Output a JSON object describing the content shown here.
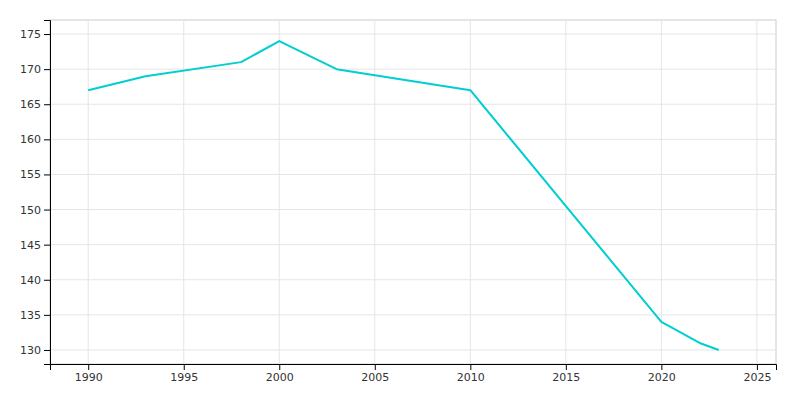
{
  "chart_data": {
    "type": "line",
    "x": [
      1990,
      1993,
      1998,
      2000,
      2003,
      2010,
      2020,
      2022,
      2023
    ],
    "values": [
      167,
      169,
      171,
      174,
      170,
      167,
      134,
      131,
      130
    ],
    "color": "#00CED1",
    "xlim": [
      1988,
      2026
    ],
    "ylim": [
      128,
      177
    ],
    "xticks": [
      1990,
      1995,
      2000,
      2005,
      2010,
      2015,
      2020,
      2025
    ],
    "yticks": [
      130,
      135,
      140,
      145,
      150,
      155,
      160,
      165,
      170,
      175
    ],
    "grid": true
  }
}
